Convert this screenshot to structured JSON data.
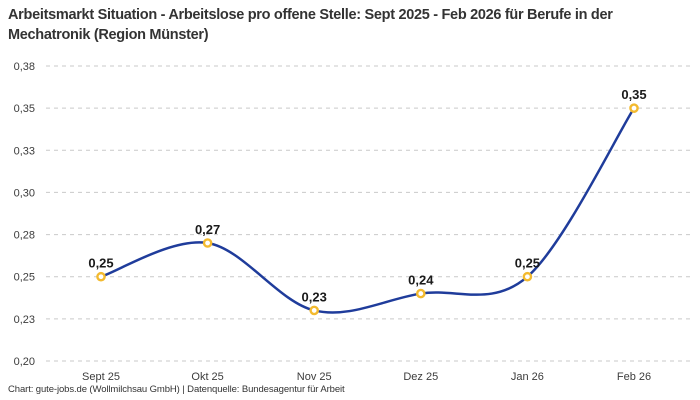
{
  "header": {
    "title": "Arbeitsmarkt Situation - Arbeitslose pro offene Stelle: Sept 2025 - Feb 2026 für Berufe in der Mechatronik (Region Münster)"
  },
  "footer": {
    "credit": "Chart: gute-jobs.de (Wollmilchsau GmbH) | Datenquelle: Bundesagentur für Arbeit"
  },
  "chart_data": {
    "type": "line",
    "title": "Arbeitsmarkt Situation - Arbeitslose pro offene Stelle: Sept 2025 - Feb 2026 für Berufe in der Mechatronik (Region Münster)",
    "categories": [
      "Sept 25",
      "Okt 25",
      "Nov 25",
      "Dez 25",
      "Jan 26",
      "Feb 26"
    ],
    "values": [
      0.25,
      0.27,
      0.23,
      0.24,
      0.25,
      0.35
    ],
    "value_labels": [
      "0,25",
      "0,27",
      "0,23",
      "0,24",
      "0,25",
      "0,35"
    ],
    "xlabel": "",
    "ylabel": "",
    "ylim": [
      0.2,
      0.375
    ],
    "y_ticks": [
      0.2,
      0.225,
      0.25,
      0.275,
      0.3,
      0.325,
      0.35,
      0.375
    ],
    "y_tick_labels": [
      "0,20",
      "0,23",
      "0,25",
      "0,28",
      "0,30",
      "0,33",
      "0,35",
      "0,38"
    ],
    "grid": "horizontal-dashed",
    "legend_position": "none",
    "marker_shape": "open-circle",
    "colors": {
      "line": "#1f3c9b",
      "marker_stroke": "#f3ba2f",
      "marker_fill": "#ffffff",
      "grid": "#c9c9c9",
      "data_label": "#1a1a1a",
      "tick_label": "#3c3c3c",
      "title": "#333333"
    }
  }
}
